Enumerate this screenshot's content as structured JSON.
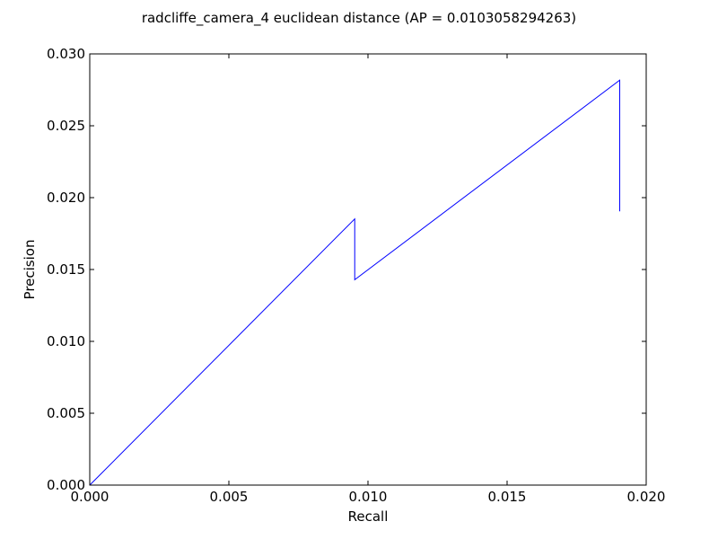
{
  "chart_data": {
    "type": "line",
    "title": "radcliffe_camera_4 euclidean distance  (AP = 0.0103058294263)",
    "xlabel": "Recall",
    "ylabel": "Precision",
    "xlim": [
      0,
      0.02
    ],
    "ylim": [
      0,
      0.03
    ],
    "xticks": [
      0.0,
      0.005,
      0.01,
      0.015,
      0.02
    ],
    "yticks": [
      0.0,
      0.005,
      0.01,
      0.015,
      0.02,
      0.025,
      0.03
    ],
    "xtick_labels": [
      "0.000",
      "0.005",
      "0.010",
      "0.015",
      "0.020"
    ],
    "ytick_labels": [
      "0.000",
      "0.005",
      "0.010",
      "0.015",
      "0.020",
      "0.025",
      "0.030"
    ],
    "grid": false,
    "series": [
      {
        "color": "#0000ff",
        "x": [
          0.0,
          0.009524,
          0.009524,
          0.019048,
          0.019048
        ],
        "y": [
          0.0,
          0.01852,
          0.01429,
          0.02817,
          0.01905
        ]
      }
    ]
  }
}
